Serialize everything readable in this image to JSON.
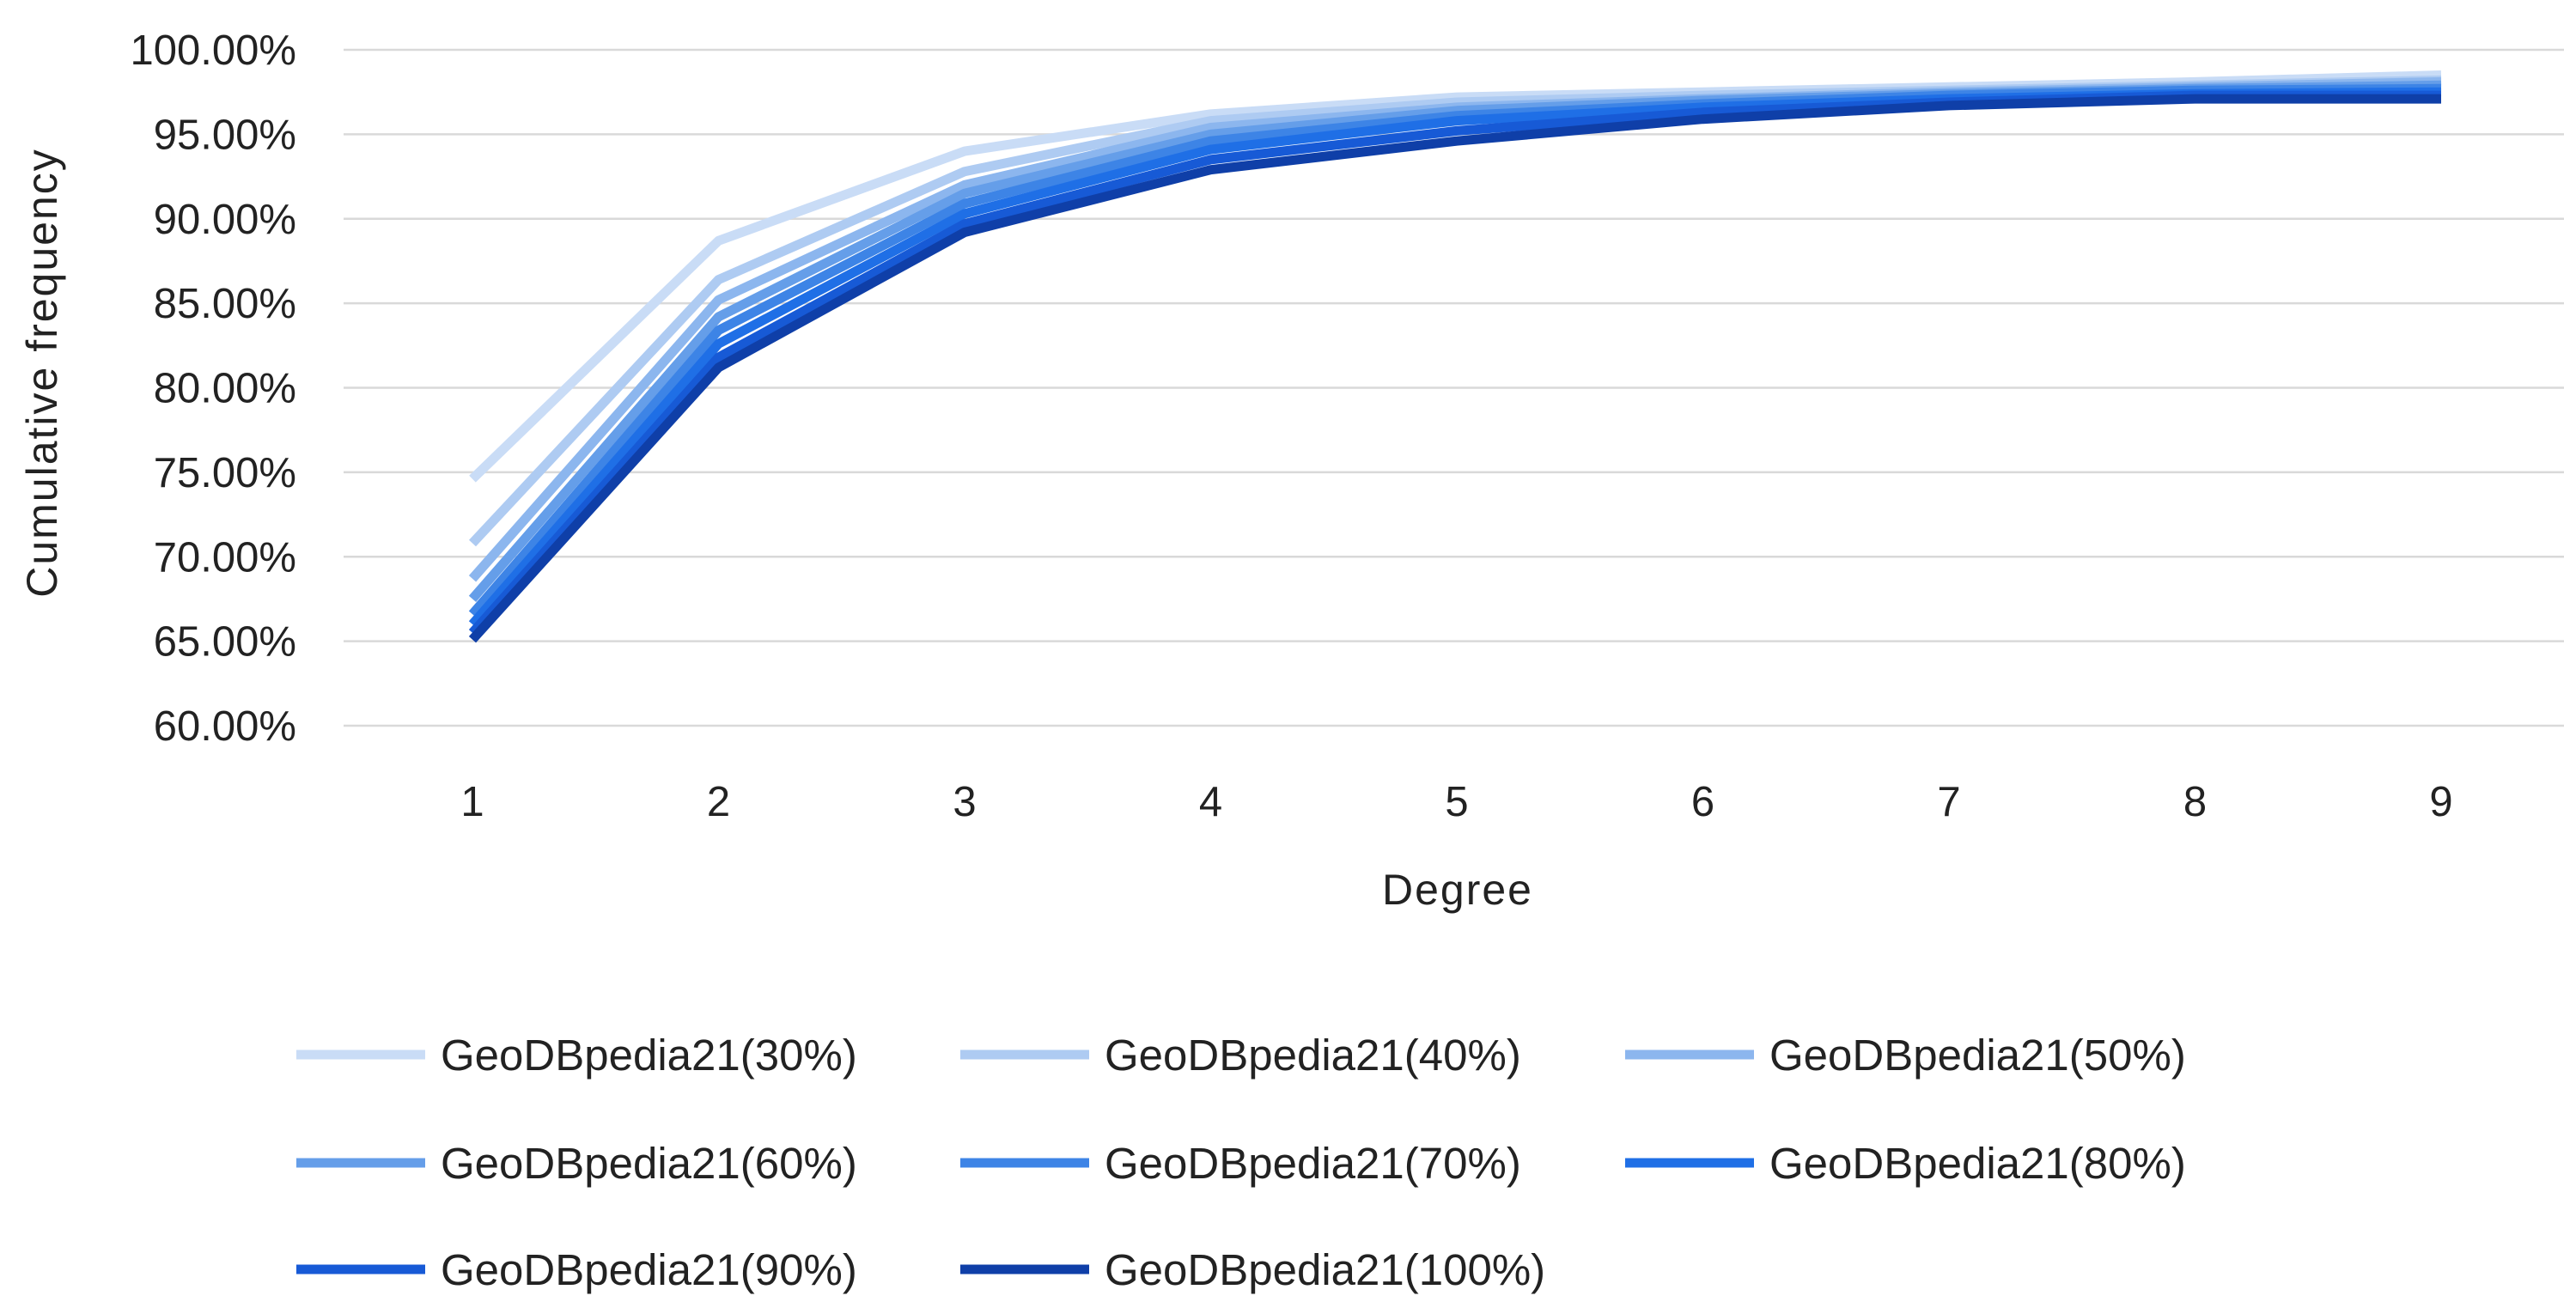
{
  "chart_data": {
    "type": "line",
    "xlabel": "Degree",
    "ylabel": "Cumulative frequency",
    "x": [
      1,
      2,
      3,
      4,
      5,
      6,
      7,
      8,
      9
    ],
    "ylim": [
      0.6,
      1.0
    ],
    "y_ticks": [
      "60.00%",
      "65.00%",
      "70.00%",
      "75.00%",
      "80.00%",
      "85.00%",
      "90.00%",
      "95.00%",
      "100.00%"
    ],
    "y_tick_values": [
      0.6,
      0.65,
      0.7,
      0.75,
      0.8,
      0.85,
      0.9,
      0.95,
      1.0
    ],
    "grid": true,
    "legend_position": "bottom",
    "series": [
      {
        "name": "GeoDBpedia21(30%)",
        "color": "#c9dcf6",
        "values": [
          0.746,
          0.887,
          0.94,
          0.962,
          0.972,
          0.975,
          0.978,
          0.981,
          0.985
        ]
      },
      {
        "name": "GeoDBpedia21(40%)",
        "color": "#aecbf2",
        "values": [
          0.708,
          0.864,
          0.928,
          0.958,
          0.969,
          0.973,
          0.976,
          0.979,
          0.982
        ]
      },
      {
        "name": "GeoDBpedia21(50%)",
        "color": "#8cb6ee",
        "values": [
          0.687,
          0.852,
          0.92,
          0.954,
          0.966,
          0.971,
          0.975,
          0.978,
          0.981
        ]
      },
      {
        "name": "GeoDBpedia21(60%)",
        "color": "#659ee9",
        "values": [
          0.675,
          0.842,
          0.915,
          0.95,
          0.964,
          0.97,
          0.974,
          0.977,
          0.979
        ]
      },
      {
        "name": "GeoDBpedia21(70%)",
        "color": "#3d84e6",
        "values": [
          0.666,
          0.834,
          0.909,
          0.946,
          0.961,
          0.968,
          0.973,
          0.976,
          0.977
        ]
      },
      {
        "name": "GeoDBpedia21(80%)",
        "color": "#1f6fe6",
        "values": [
          0.66,
          0.826,
          0.903,
          0.941,
          0.958,
          0.966,
          0.971,
          0.974,
          0.975
        ]
      },
      {
        "name": "GeoDBpedia21(90%)",
        "color": "#175ad6",
        "values": [
          0.655,
          0.818,
          0.897,
          0.935,
          0.952,
          0.963,
          0.969,
          0.973,
          0.973
        ]
      },
      {
        "name": "GeoDBpedia21(100%)",
        "color": "#0f3fa8",
        "values": [
          0.651,
          0.812,
          0.892,
          0.929,
          0.946,
          0.959,
          0.967,
          0.971,
          0.971
        ]
      }
    ]
  }
}
